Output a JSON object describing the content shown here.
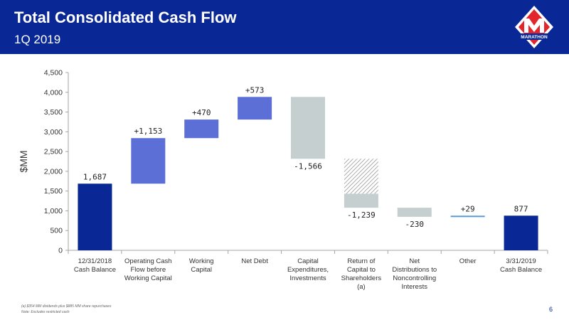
{
  "header": {
    "title": "Total Consolidated Cash Flow",
    "subtitle": "1Q 2019",
    "logo_text": "MARATHON"
  },
  "footer": {
    "note_a": "(a) $354 MM dividends plus $885 MM share repurchases",
    "note_b": "Note: Excludes restricted cash",
    "page_number": "6"
  },
  "colors": {
    "header_bg": "#0a2796",
    "balance_bar": "#0a2796",
    "increase_bar": "#5b6fd6",
    "decrease_bar": "#c5cfcf",
    "other_line": "#5b9bd5",
    "logo_red": "#e3262d"
  },
  "chart_data": {
    "type": "waterfall",
    "title": "",
    "xlabel": "",
    "ylabel": "$MM",
    "ylim": [
      0,
      4500
    ],
    "yticks": [
      0,
      500,
      1000,
      1500,
      2000,
      2500,
      3000,
      3500,
      4000,
      4500
    ],
    "ytick_labels": [
      "0",
      "500",
      "1,000",
      "1,500",
      "2,000",
      "2,500",
      "3,000",
      "3,500",
      "4,000",
      "4,500"
    ],
    "grid": false,
    "categories": [
      {
        "label": [
          "12/31/2018",
          "Cash Balance"
        ],
        "kind": "total",
        "base": 0,
        "top": 1687,
        "value_label": "1,687"
      },
      {
        "label": [
          "Operating Cash",
          "Flow before",
          "Working Capital"
        ],
        "kind": "increase",
        "base": 1687,
        "top": 2840,
        "value_label": "+1,153"
      },
      {
        "label": [
          "Working",
          "Capital"
        ],
        "kind": "increase",
        "base": 2840,
        "top": 3310,
        "value_label": "+470"
      },
      {
        "label": [
          "Net Debt"
        ],
        "kind": "increase",
        "base": 3310,
        "top": 3883,
        "value_label": "+573"
      },
      {
        "label": [
          "Capital",
          "Expenditures,",
          "Investments"
        ],
        "kind": "decrease",
        "base": 2317,
        "top": 3883,
        "value_label": "-1,566"
      },
      {
        "label": [
          "Return of",
          "Capital to",
          "Shareholders",
          "(a)"
        ],
        "kind": "decrease_split",
        "base": 1078,
        "split": 1432,
        "top": 2317,
        "value_label": "-1,239"
      },
      {
        "label": [
          "Net",
          "Distributions to",
          "Noncontrolling",
          "Interests"
        ],
        "kind": "decrease",
        "base": 848,
        "top": 1078,
        "value_label": "-230"
      },
      {
        "label": [
          "Other"
        ],
        "kind": "increase_thin",
        "base": 848,
        "top": 877,
        "value_label": "+29"
      },
      {
        "label": [
          "3/31/2019",
          "Cash Balance"
        ],
        "kind": "total",
        "base": 0,
        "top": 877,
        "value_label": "877"
      }
    ]
  }
}
